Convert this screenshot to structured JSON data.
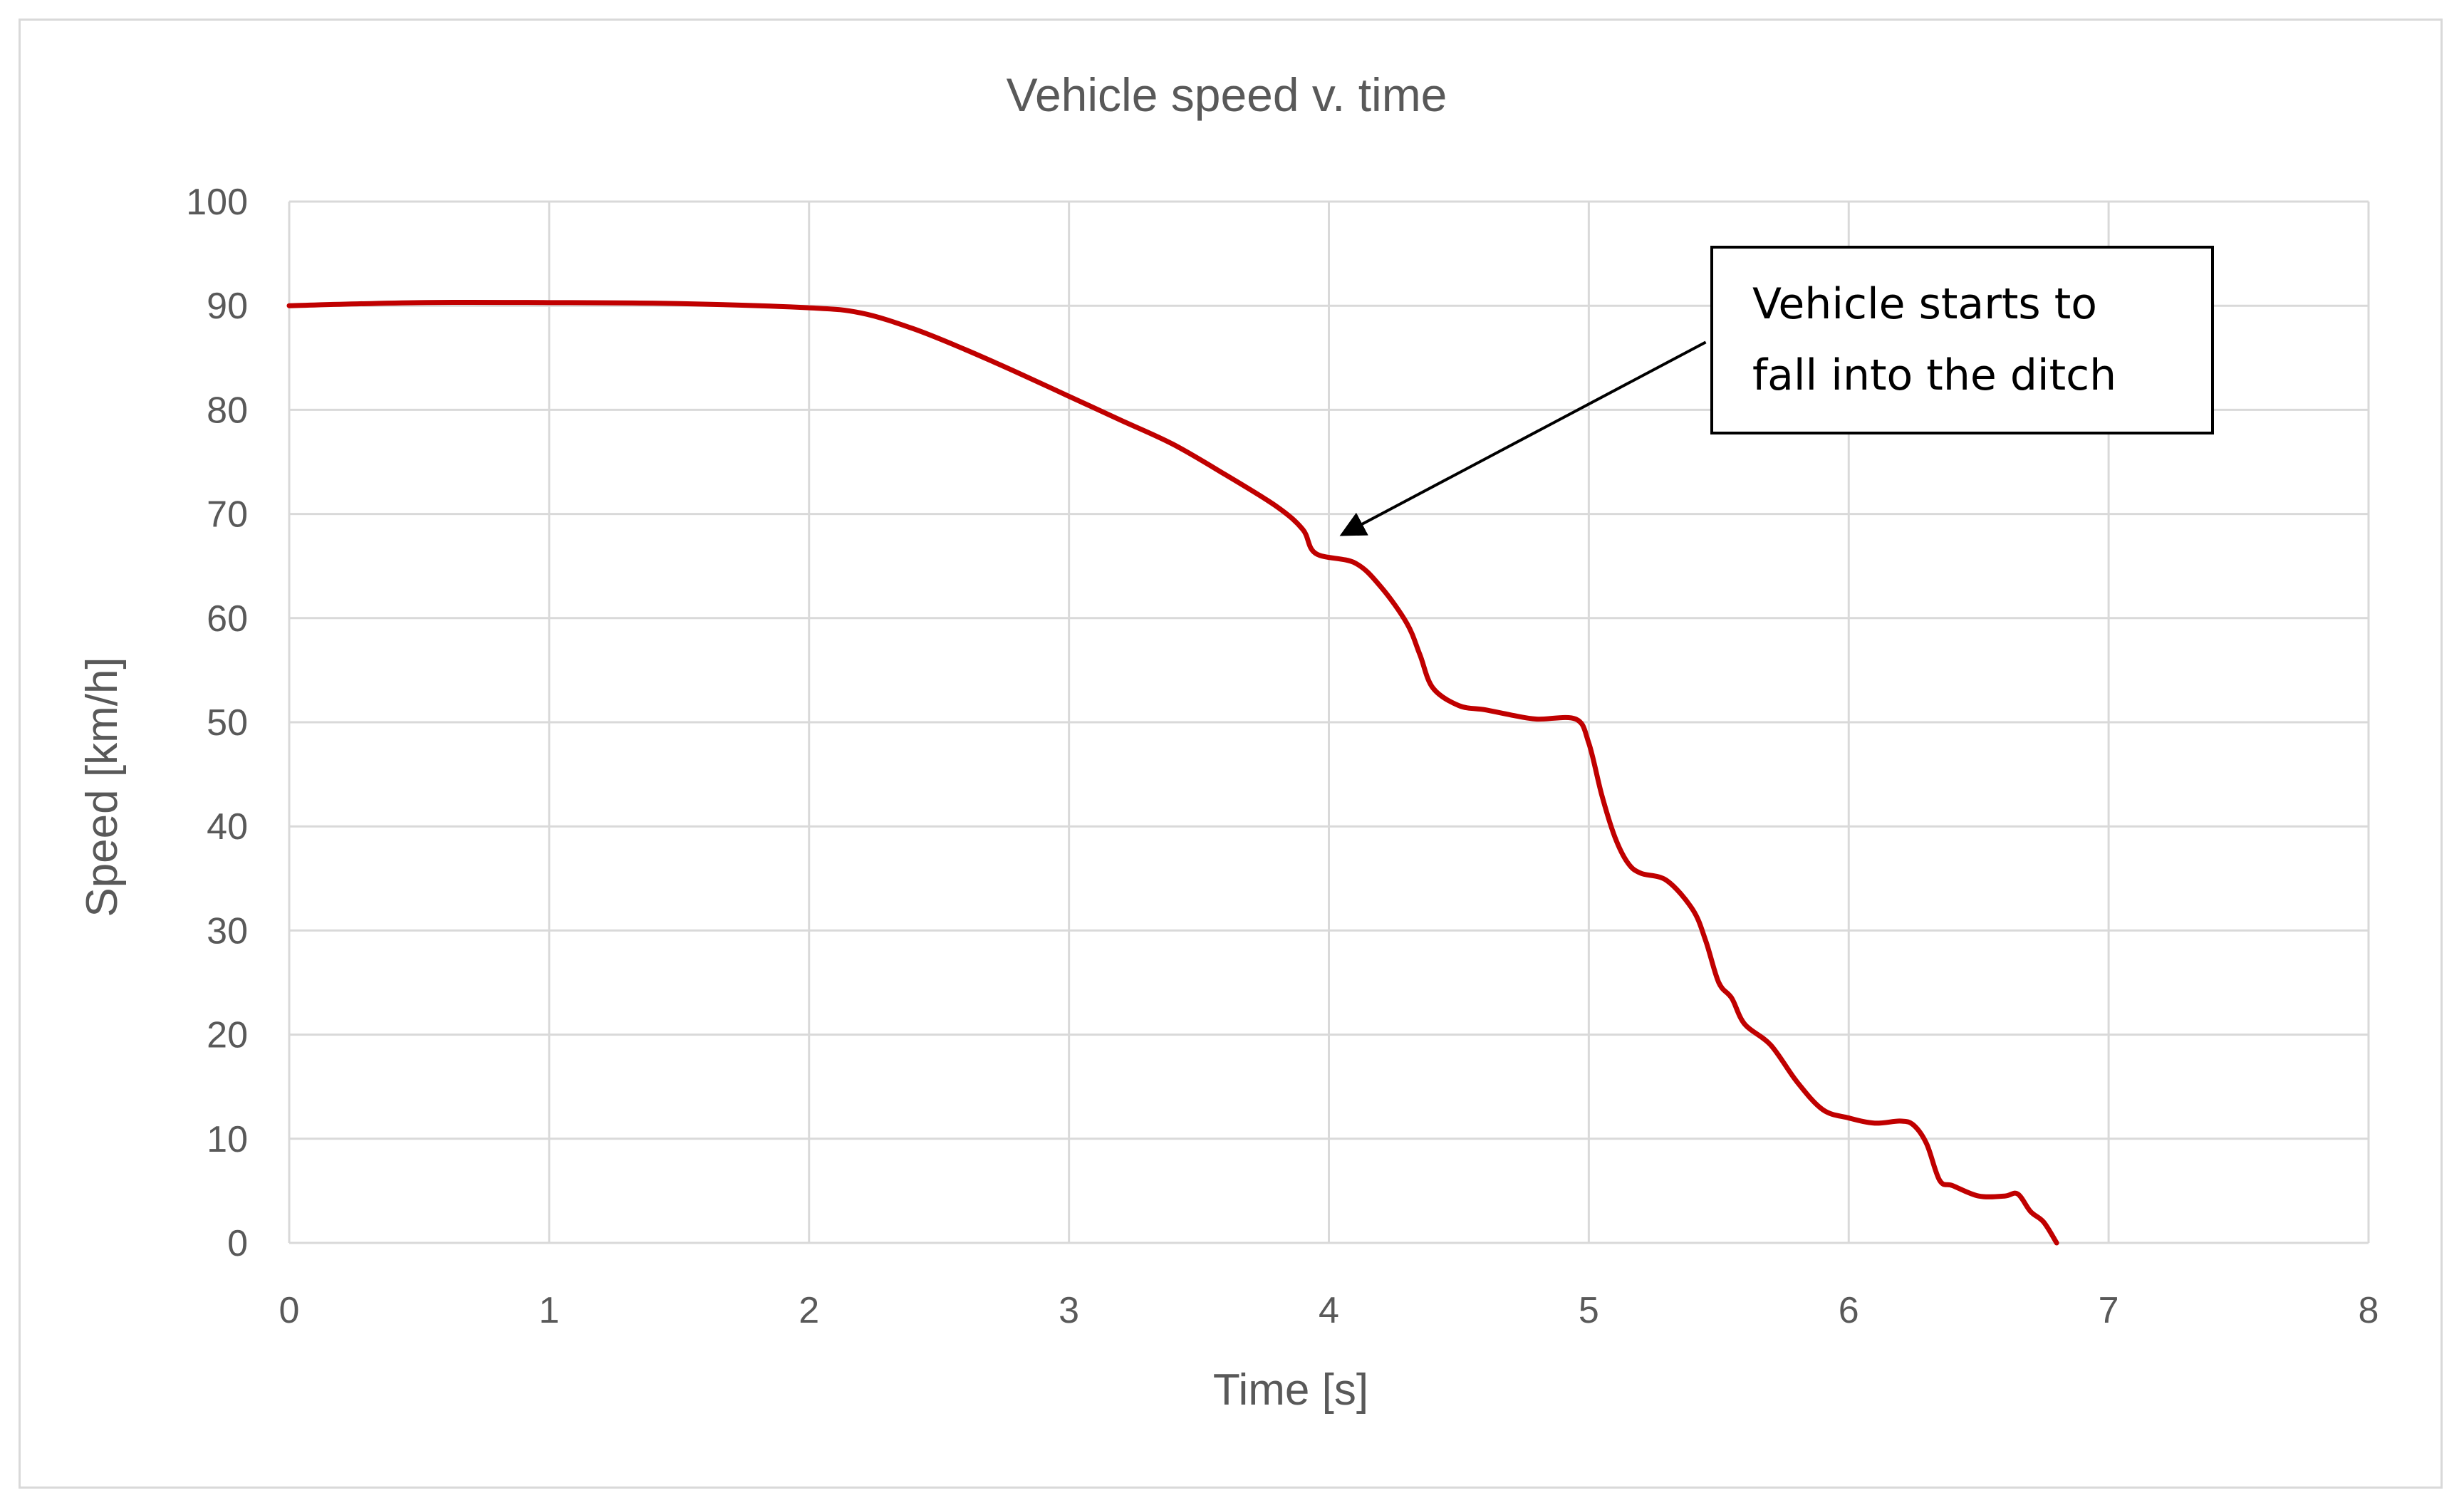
{
  "chart_data": {
    "type": "line",
    "title": "Vehicle speed v. time",
    "xlabel": "Time [s]",
    "ylabel": "Speed [km/h]",
    "xlim": [
      0,
      8
    ],
    "ylim": [
      0,
      100
    ],
    "xticks": [
      0,
      1,
      2,
      3,
      4,
      5,
      6,
      7,
      8
    ],
    "yticks": [
      0,
      10,
      20,
      30,
      40,
      50,
      60,
      70,
      80,
      90,
      100
    ],
    "grid": true,
    "legend": "none",
    "series": [
      {
        "color": "#c00000",
        "x": [
          0,
          0.5,
          1.0,
          1.5,
          2.0,
          2.2,
          2.4,
          2.6,
          2.8,
          3.0,
          3.2,
          3.4,
          3.6,
          3.8,
          3.9,
          3.95,
          4.1,
          4.2,
          4.3,
          4.35,
          4.4,
          4.5,
          4.6,
          4.7,
          4.8,
          4.95,
          5.0,
          5.05,
          5.1,
          5.15,
          5.2,
          5.3,
          5.4,
          5.45,
          5.5,
          5.55,
          5.6,
          5.7,
          5.8,
          5.9,
          6.0,
          6.1,
          6.2,
          6.25,
          6.3,
          6.35,
          6.4,
          6.5,
          6.6,
          6.65,
          6.7,
          6.75,
          6.8
        ],
        "y": [
          90,
          90.3,
          90.3,
          90.2,
          89.8,
          89.3,
          87.8,
          85.8,
          83.6,
          81.3,
          79.0,
          76.7,
          73.8,
          70.7,
          68.5,
          66.2,
          65.3,
          63.0,
          59.5,
          56.5,
          53.3,
          51.6,
          51.2,
          50.7,
          50.3,
          50.3,
          48.0,
          43.0,
          39.0,
          36.5,
          35.5,
          34.8,
          32.0,
          29.0,
          25.0,
          23.5,
          21.0,
          19.0,
          15.5,
          12.8,
          12.0,
          11.5,
          11.7,
          11.3,
          9.5,
          6.0,
          5.5,
          4.5,
          4.5,
          4.7,
          3.0,
          2.0,
          0.0
        ]
      }
    ],
    "annotations": [
      {
        "lines": [
          "Vehicle starts to",
          "fall into the ditch"
        ],
        "points_to": [
          4.05,
          68.0
        ],
        "from": [
          5.45,
          86.5
        ]
      }
    ]
  }
}
